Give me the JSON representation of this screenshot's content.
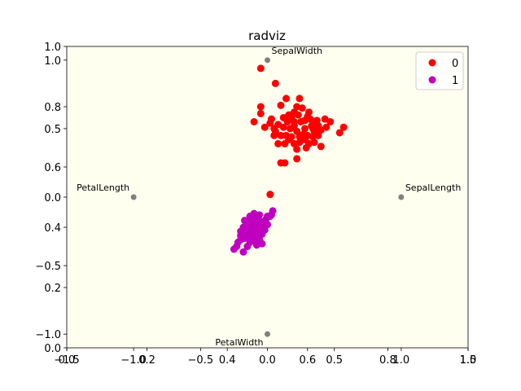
{
  "chart_data": {
    "type": "scatter",
    "title": "radviz",
    "background_color": "#fffff0",
    "anchor_color": "#808080",
    "xlim": [
      -1.5,
      1.5
    ],
    "ylim": [
      -1.1,
      1.1
    ],
    "outer_x_ticks": [
      "0.0",
      "0.2",
      "0.4",
      "0.6",
      "0.8",
      "1.0"
    ],
    "outer_y_ticks": [
      "0.0",
      "0.2",
      "0.4",
      "0.6",
      "0.8",
      "1.0"
    ],
    "x_ticks": [
      "−1.5",
      "−1.0",
      "−0.5",
      "0.0",
      "0.5",
      "1.0",
      "1.5"
    ],
    "y_ticks": [
      "−1.0",
      "−0.5",
      "0.0",
      "0.5",
      "1.0"
    ],
    "anchors": [
      {
        "name": "SepalLength",
        "x": 1.0,
        "y": 0.0
      },
      {
        "name": "SepalWidth",
        "x": 0.0,
        "y": 1.0
      },
      {
        "name": "PetalLength",
        "x": -1.0,
        "y": 0.0
      },
      {
        "name": "PetalWidth",
        "x": 0.0,
        "y": -1.0
      }
    ],
    "legend_position": "top-right",
    "series": [
      {
        "name": "0",
        "color": "#ff0000",
        "points": [
          [
            -0.05,
            0.94
          ],
          [
            0.14,
            0.72
          ],
          [
            0.06,
            0.83
          ],
          [
            -0.05,
            0.66
          ],
          [
            0.03,
            0.57
          ],
          [
            -0.05,
            0.61
          ],
          [
            0.1,
            0.67
          ],
          [
            0.14,
            0.57
          ],
          [
            0.2,
            0.52
          ],
          [
            0.18,
            0.44
          ],
          [
            -0.1,
            0.55
          ],
          [
            -0.02,
            0.51
          ],
          [
            0.02,
            0.54
          ],
          [
            0.05,
            0.5
          ],
          [
            0.08,
            0.53
          ],
          [
            0.12,
            0.58
          ],
          [
            0.15,
            0.55
          ],
          [
            0.18,
            0.58
          ],
          [
            0.2,
            0.62
          ],
          [
            0.23,
            0.6
          ],
          [
            0.25,
            0.55
          ],
          [
            0.28,
            0.5
          ],
          [
            0.3,
            0.45
          ],
          [
            0.33,
            0.52
          ],
          [
            0.35,
            0.48
          ],
          [
            0.38,
            0.52
          ],
          [
            0.32,
            0.57
          ],
          [
            0.27,
            0.46
          ],
          [
            0.22,
            0.48
          ],
          [
            0.17,
            0.5
          ],
          [
            0.1,
            0.45
          ],
          [
            0.06,
            0.48
          ],
          [
            0.13,
            0.39
          ],
          [
            0.16,
            0.42
          ],
          [
            0.2,
            0.39
          ],
          [
            0.24,
            0.4
          ],
          [
            0.28,
            0.42
          ],
          [
            0.31,
            0.39
          ],
          [
            0.34,
            0.44
          ],
          [
            0.37,
            0.56
          ],
          [
            0.4,
            0.49
          ],
          [
            0.44,
            0.51
          ],
          [
            0.47,
            0.55
          ],
          [
            0.54,
            0.47
          ],
          [
            0.57,
            0.51
          ],
          [
            0.22,
            0.66
          ],
          [
            0.26,
            0.65
          ],
          [
            0.3,
            0.59
          ],
          [
            0.35,
            0.53
          ],
          [
            0.22,
            0.35
          ],
          [
            0.08,
            0.39
          ],
          [
            0.05,
            0.45
          ],
          [
            0.12,
            0.51
          ],
          [
            0.16,
            0.6
          ],
          [
            0.28,
            0.56
          ],
          [
            0.31,
            0.62
          ],
          [
            0.34,
            0.5
          ],
          [
            0.38,
            0.45
          ],
          [
            0.35,
            0.4
          ],
          [
            0.4,
            0.37
          ],
          [
            0.43,
            0.57
          ],
          [
            0.24,
            0.72
          ],
          [
            0.13,
            0.25
          ],
          [
            0.1,
            0.25
          ],
          [
            0.22,
            0.28
          ],
          [
            0.29,
            0.36
          ],
          [
            0.24,
            0.44
          ],
          [
            0.2,
            0.55
          ],
          [
            0.14,
            0.45
          ],
          [
            0.02,
            0.02
          ]
        ]
      },
      {
        "name": "1",
        "color": "#bf00bf",
        "points": [
          [
            -0.25,
            -0.38
          ],
          [
            -0.17,
            -0.3
          ],
          [
            -0.11,
            -0.18
          ],
          [
            -0.06,
            -0.17
          ],
          [
            -0.01,
            -0.16
          ],
          [
            0.04,
            -0.1
          ],
          [
            0.02,
            -0.14
          ],
          [
            -0.04,
            -0.2
          ],
          [
            -0.08,
            -0.27
          ],
          [
            -0.12,
            -0.22
          ],
          [
            -0.16,
            -0.23
          ],
          [
            -0.17,
            -0.17
          ],
          [
            -0.13,
            -0.14
          ],
          [
            -0.1,
            -0.12
          ],
          [
            -0.06,
            -0.13
          ],
          [
            -0.04,
            -0.27
          ],
          [
            -0.22,
            -0.33
          ],
          [
            -0.2,
            -0.28
          ],
          [
            -0.14,
            -0.3
          ],
          [
            -0.09,
            -0.32
          ],
          [
            -0.15,
            -0.36
          ],
          [
            -0.23,
            -0.36
          ],
          [
            -0.06,
            -0.31
          ],
          [
            -0.16,
            -0.2
          ],
          [
            -0.05,
            -0.21
          ],
          [
            -0.11,
            -0.24
          ],
          [
            -0.12,
            -0.28
          ],
          [
            -0.07,
            -0.22
          ],
          [
            0.0,
            -0.2
          ],
          [
            0.03,
            -0.13
          ],
          [
            -0.14,
            -0.18
          ],
          [
            -0.18,
            -0.22
          ],
          [
            -0.2,
            -0.25
          ],
          [
            -0.09,
            -0.17
          ],
          [
            -0.02,
            -0.24
          ],
          [
            -0.08,
            -0.35
          ],
          [
            -0.1,
            -0.2
          ],
          [
            -0.12,
            -0.26
          ],
          [
            -0.15,
            -0.26
          ],
          [
            -0.02,
            -0.18
          ],
          [
            -0.06,
            -0.25
          ],
          [
            -0.04,
            -0.34
          ],
          [
            -0.18,
            -0.4
          ],
          [
            -0.13,
            -0.14
          ],
          [
            -0.1,
            -0.15
          ],
          [
            0.0,
            -0.14
          ],
          [
            -0.07,
            -0.18
          ],
          [
            -0.1,
            -0.29
          ],
          [
            -0.13,
            -0.33
          ],
          [
            -0.2,
            -0.31
          ]
        ]
      }
    ]
  }
}
